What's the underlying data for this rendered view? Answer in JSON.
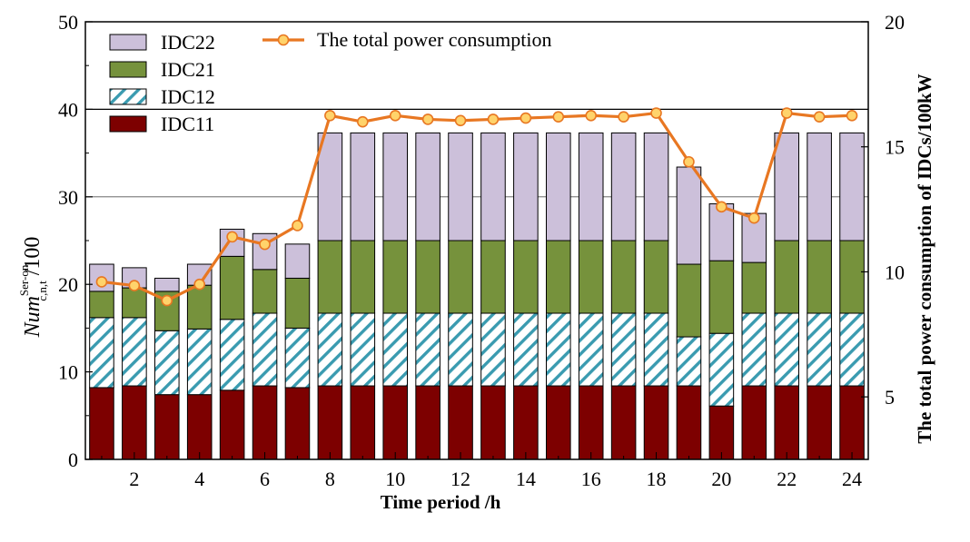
{
  "chart_data": {
    "type": "bar",
    "stacked": true,
    "categories": [
      1,
      2,
      3,
      4,
      5,
      6,
      7,
      8,
      9,
      10,
      11,
      12,
      13,
      14,
      15,
      16,
      17,
      18,
      19,
      20,
      21,
      22,
      23,
      24
    ],
    "x_tick_labels": [
      "2",
      "4",
      "6",
      "8",
      "10",
      "12",
      "14",
      "16",
      "18",
      "20",
      "22",
      "24"
    ],
    "series": [
      {
        "name": "IDC11",
        "color": "#7d0000",
        "values": [
          8.2,
          8.4,
          7.4,
          7.4,
          7.9,
          8.4,
          8.2,
          8.4,
          8.4,
          8.4,
          8.4,
          8.4,
          8.4,
          8.4,
          8.4,
          8.4,
          8.4,
          8.4,
          8.4,
          6.1,
          8.4,
          8.4,
          8.4,
          8.4
        ]
      },
      {
        "name": "IDC12",
        "color": "#3a9bb0",
        "values": [
          8.0,
          7.8,
          7.3,
          7.5,
          8.1,
          8.3,
          6.8,
          8.3,
          8.3,
          8.3,
          8.3,
          8.3,
          8.3,
          8.3,
          8.3,
          8.3,
          8.3,
          8.3,
          5.6,
          8.3,
          8.3,
          8.3,
          8.3,
          8.3
        ]
      },
      {
        "name": "IDC21",
        "color": "#76923c",
        "values": [
          3.0,
          3.4,
          4.5,
          5.0,
          7.2,
          5.0,
          5.7,
          8.3,
          8.3,
          8.3,
          8.3,
          8.3,
          8.3,
          8.3,
          8.3,
          8.3,
          8.3,
          8.3,
          8.3,
          8.3,
          5.8,
          8.3,
          8.3,
          8.3
        ]
      },
      {
        "name": "IDC22",
        "color": "#ccc0da",
        "values": [
          3.1,
          2.3,
          1.5,
          2.4,
          3.1,
          4.1,
          3.9,
          12.3,
          12.3,
          12.3,
          12.3,
          12.3,
          12.3,
          12.3,
          12.3,
          12.3,
          12.3,
          12.3,
          11.1,
          6.5,
          5.6,
          12.3,
          12.3,
          12.3
        ]
      }
    ],
    "line_series": {
      "name": "The total power consumption",
      "axis": "right",
      "color": "#e87722",
      "marker_color": "#ffd36b",
      "values": [
        9.6,
        9.45,
        8.85,
        9.5,
        11.4,
        11.1,
        11.85,
        16.25,
        16.0,
        16.25,
        16.1,
        16.05,
        16.1,
        16.15,
        16.2,
        16.25,
        16.2,
        16.35,
        14.4,
        12.6,
        12.15,
        16.35,
        16.2,
        16.25
      ]
    },
    "ylim": [
      0,
      50
    ],
    "y_ticks": [
      "0",
      "10",
      "20",
      "30",
      "40",
      "50"
    ],
    "y2lim": [
      2.5,
      20
    ],
    "y2_ticks": [
      "5",
      "10",
      "15",
      "20"
    ],
    "xlabel": "Time period /h",
    "ylabel": {
      "main": "Num",
      "superscript": "Ser-on",
      "subscript": "c,n,t",
      "tail": " /100"
    },
    "y2label": "The total power consumption of IDCs/100kW",
    "gridlines": [
      30,
      40
    ],
    "legend_placement": "top-left"
  }
}
